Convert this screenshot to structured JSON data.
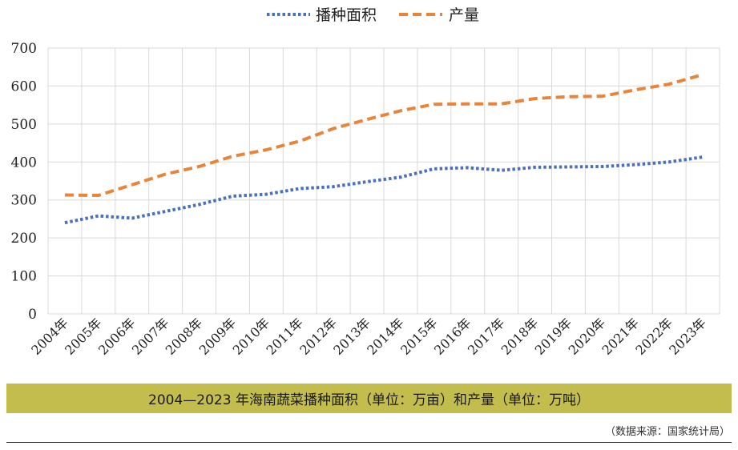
{
  "chart_data": {
    "type": "line",
    "title": "",
    "xlabel": "",
    "ylabel": "",
    "ylim": [
      0,
      700
    ],
    "yticks": [
      0,
      100,
      200,
      300,
      400,
      500,
      600,
      700
    ],
    "grid": true,
    "legend_position": "top-center",
    "categories": [
      "2004年",
      "2005年",
      "2006年",
      "2007年",
      "2008年",
      "2009年",
      "2010年",
      "2011年",
      "2012年",
      "2013年",
      "2014年",
      "2015年",
      "2016年",
      "2017年",
      "2018年",
      "2019年",
      "2020年",
      "2021年",
      "2022年",
      "2023年"
    ],
    "series": [
      {
        "name": "播种面积",
        "color": "#4a72b8",
        "style": "dotted",
        "values": [
          240,
          258,
          252,
          270,
          288,
          310,
          315,
          330,
          335,
          348,
          360,
          382,
          385,
          378,
          386,
          387,
          388,
          393,
          400,
          413
        ]
      },
      {
        "name": "产量",
        "color": "#e8853a",
        "style": "dashed",
        "values": [
          313,
          312,
          340,
          368,
          388,
          415,
          432,
          455,
          488,
          512,
          535,
          552,
          553,
          553,
          567,
          572,
          573,
          590,
          605,
          630
        ]
      }
    ]
  },
  "caption": "2004—2023 年海南蔬菜播种面积（单位：万亩）和产量（单位：万吨）",
  "source": "（数据来源：国家统计局）"
}
